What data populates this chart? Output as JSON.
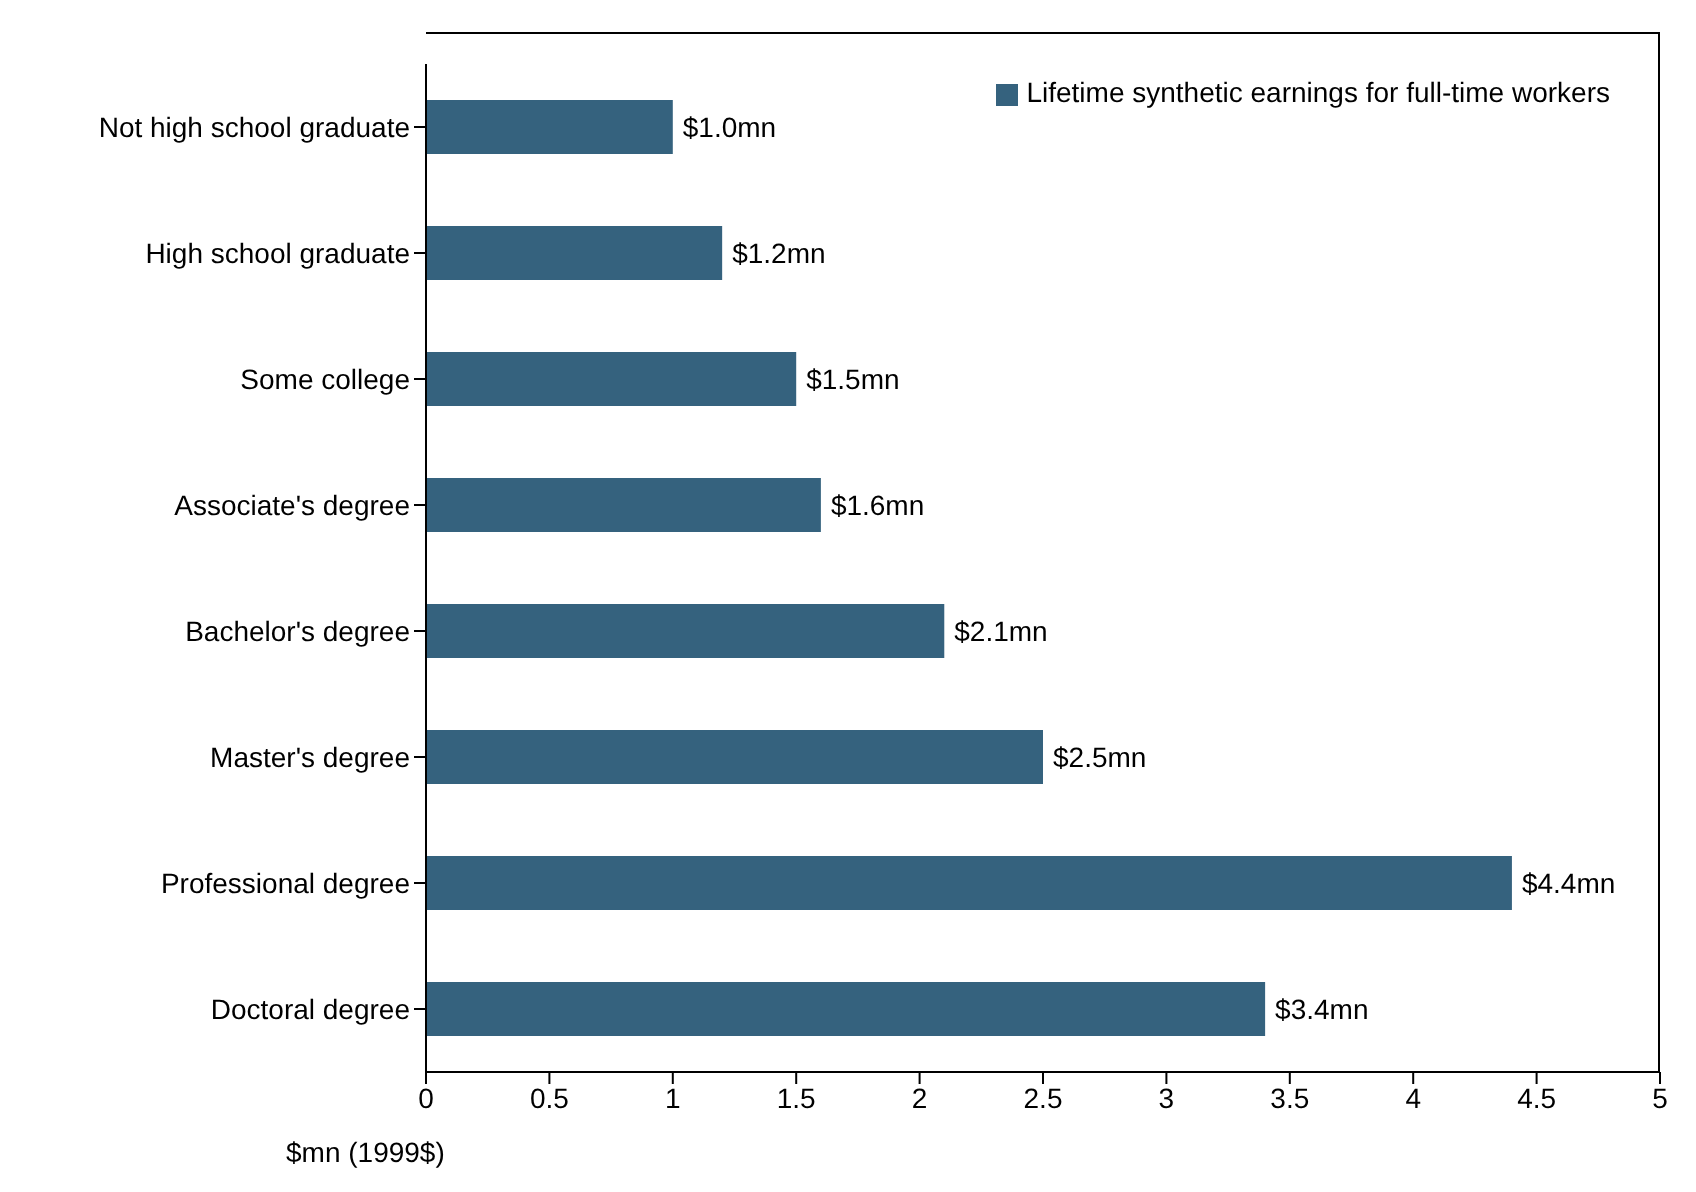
{
  "chart_data": {
    "type": "bar",
    "orientation": "horizontal",
    "categories": [
      "Not high school graduate",
      "High school graduate",
      "Some college",
      "Associate's degree",
      "Bachelor's degree",
      "Master's degree",
      "Professional degree",
      "Doctoral degree"
    ],
    "series": [
      {
        "name": "Lifetime synthetic earnings for full-time workers",
        "color": "#35627e",
        "values": [
          1.0,
          1.2,
          1.5,
          1.6,
          2.1,
          2.5,
          4.4,
          3.4
        ],
        "value_labels": [
          "$1.0mn",
          "$1.2mn",
          "$1.5mn",
          "$1.6mn",
          "$2.1mn",
          "$2.5mn",
          "$4.4mn",
          "$3.4mn"
        ]
      }
    ],
    "xlabel": "$mn (1999$)",
    "xlim": [
      0,
      5
    ],
    "xticks": [
      0,
      0.5,
      1,
      1.5,
      2,
      2.5,
      3,
      3.5,
      4,
      4.5,
      5
    ],
    "grid": false,
    "legend": "top right"
  }
}
